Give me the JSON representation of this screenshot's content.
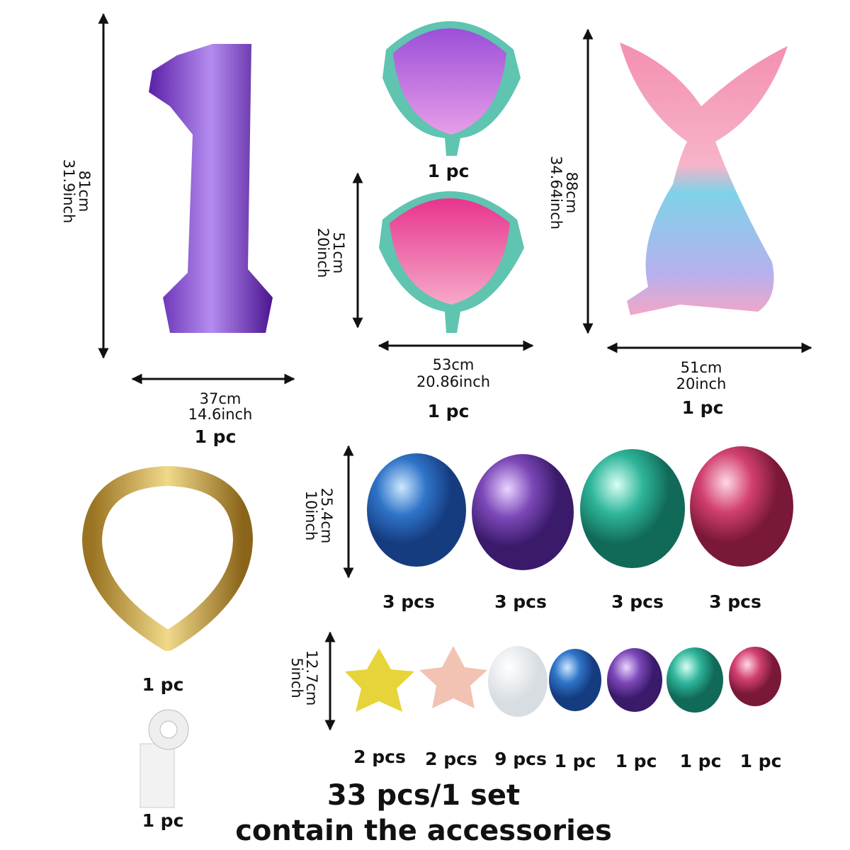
{
  "number_balloon": {
    "height_cm": "81cm",
    "height_inch": "31.9inch",
    "width_cm": "37cm",
    "width_inch": "14.6inch",
    "quantity": "1 pc"
  },
  "shell_balloons": {
    "top_quantity": "1 pc",
    "height_cm": "51cm",
    "height_inch": "20inch",
    "width_cm": "53cm",
    "width_inch": "20.86inch",
    "quantity": "1 pc"
  },
  "tail_balloon": {
    "height_cm": "88cm",
    "height_inch": "34.64inch",
    "width_cm": "51cm",
    "width_inch": "20inch",
    "quantity": "1 pc"
  },
  "large_balloons": {
    "height_cm": "25.4cm",
    "height_inch": "10inch",
    "quantities": [
      "3 pcs",
      "3 pcs",
      "3 pcs",
      "3 pcs"
    ]
  },
  "small_balloons": {
    "height_cm": "12.7cm",
    "height_inch": "5inch",
    "quantities": [
      "2 pcs",
      "2 pcs",
      "9 pcs",
      "1 pc",
      "1 pc",
      "1 pc",
      "1 pc"
    ]
  },
  "gold_balloon": {
    "quantity": "1 pc"
  },
  "glue_dots": {
    "quantity": "1 pc"
  },
  "summary": {
    "total": "33 pcs/1 set",
    "note": "contain the accessories"
  }
}
